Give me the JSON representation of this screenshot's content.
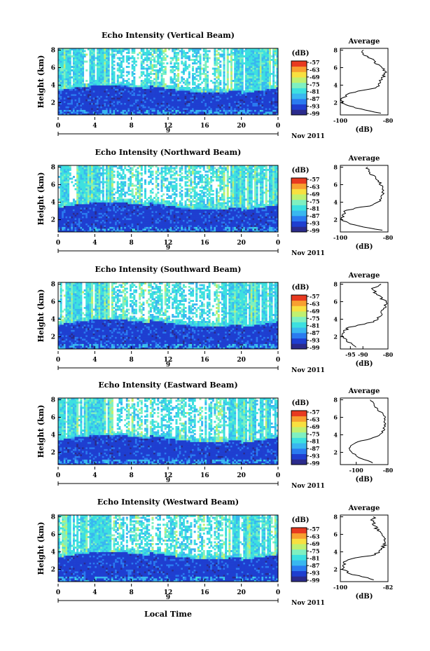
{
  "figure": {
    "xlabel": "Local Time",
    "date_label": "Nov 2011",
    "day_label": "9",
    "colorbar_unit": "(dB)",
    "colorbar_ticks": [
      "-57",
      "-63",
      "-69",
      "-75",
      "-81",
      "-87",
      "-93",
      "-99"
    ],
    "colors": {
      "scale": [
        "#2b2b8c",
        "#1f3fd0",
        "#2a7bf0",
        "#39b7f0",
        "#3de0e0",
        "#7ff0c0",
        "#c0f070",
        "#f8e040",
        "#f8a030",
        "#e83a20"
      ],
      "missing": "#ffffff"
    }
  },
  "chart_data": [
    {
      "type": "heatmap",
      "title": "Echo Intensity (Vertical Beam)",
      "ylabel": "Height (km)",
      "x_ticks": [
        "0",
        "4",
        "8",
        "12",
        "16",
        "20",
        "0"
      ],
      "y_ticks": [
        "2",
        "4",
        "6",
        "8"
      ],
      "xlim": [
        0,
        24
      ],
      "ylim": [
        0.6,
        8.2
      ],
      "color_range_db": [
        -99,
        -57
      ],
      "profile": {
        "title": "Average",
        "xlabel": "(dB)",
        "x_ticks": [
          "-100",
          "-80"
        ],
        "y_ticks": [
          "2",
          "4",
          "6",
          "8"
        ],
        "xlim": [
          -100,
          -80
        ],
        "ylim": [
          0.6,
          8.2
        ],
        "height_km": [
          0.8,
          1.5,
          2.0,
          2.5,
          3.0,
          3.3,
          3.6,
          4.0,
          4.5,
          5.0,
          5.5,
          6.0,
          6.5,
          7.0,
          7.5,
          8.0
        ],
        "db": [
          -83,
          -95,
          -99,
          -99,
          -97,
          -93,
          -86,
          -84,
          -83,
          -82,
          -81,
          -82,
          -85,
          -87,
          -90,
          -91
        ]
      }
    },
    {
      "type": "heatmap",
      "title": "Echo Intensity (Northward Beam)",
      "ylabel": "Height (km)",
      "x_ticks": [
        "0",
        "4",
        "8",
        "12",
        "16",
        "20",
        "0"
      ],
      "y_ticks": [
        "2",
        "4",
        "6",
        "8"
      ],
      "xlim": [
        0,
        24
      ],
      "ylim": [
        0.6,
        8.2
      ],
      "color_range_db": [
        -99,
        -57
      ],
      "profile": {
        "title": "Average",
        "xlabel": "(dB)",
        "x_ticks": [
          "-100",
          "-80"
        ],
        "y_ticks": [
          "2",
          "4",
          "6",
          "8"
        ],
        "xlim": [
          -100,
          -80
        ],
        "ylim": [
          0.6,
          8.2
        ],
        "height_km": [
          0.8,
          1.5,
          2.0,
          2.5,
          3.0,
          3.3,
          3.6,
          4.0,
          4.5,
          5.0,
          5.5,
          6.0,
          6.5,
          7.0,
          7.5,
          8.0
        ],
        "db": [
          -83,
          -96,
          -99,
          -99,
          -98,
          -94,
          -87,
          -84,
          -83,
          -82,
          -82,
          -83,
          -84,
          -86,
          -88,
          -89
        ]
      }
    },
    {
      "type": "heatmap",
      "title": "Echo Intensity (Southward Beam)",
      "ylabel": "Height (km)",
      "x_ticks": [
        "0",
        "4",
        "8",
        "12",
        "16",
        "20",
        "0"
      ],
      "y_ticks": [
        "2",
        "4",
        "6",
        "8"
      ],
      "xlim": [
        0,
        24
      ],
      "ylim": [
        0.6,
        8.2
      ],
      "color_range_db": [
        -99,
        -57
      ],
      "profile": {
        "title": "Average",
        "xlabel": "(dB)",
        "x_ticks": [
          "-95",
          "-90",
          "-80"
        ],
        "y_ticks": [
          "2",
          "4",
          "6",
          "8"
        ],
        "xlim": [
          -99,
          -80
        ],
        "ylim": [
          0.6,
          8.2
        ],
        "height_km": [
          0.8,
          1.5,
          2.0,
          2.5,
          3.0,
          3.3,
          3.6,
          4.0,
          4.5,
          5.0,
          5.5,
          6.0,
          6.5,
          7.0,
          7.5,
          8.0
        ],
        "db": [
          -92,
          -96,
          -98,
          -98,
          -96,
          -92,
          -87,
          -84,
          -83,
          -82,
          -81,
          -81,
          -83,
          -85,
          -86,
          -82
        ]
      }
    },
    {
      "type": "heatmap",
      "title": "Echo Intensity (Eastward Beam)",
      "ylabel": "Height (km)",
      "x_ticks": [
        "0",
        "4",
        "8",
        "12",
        "16",
        "20",
        "0"
      ],
      "y_ticks": [
        "2",
        "4",
        "6",
        "8"
      ],
      "xlim": [
        0,
        24
      ],
      "ylim": [
        0.6,
        8.2
      ],
      "color_range_db": [
        -99,
        -57
      ],
      "profile": {
        "title": "Average",
        "xlabel": "(dB)",
        "x_ticks": [
          "-100",
          "-80"
        ],
        "y_ticks": [
          "2",
          "4",
          "6",
          "8"
        ],
        "xlim": [
          -110,
          -80
        ],
        "ylim": [
          0.6,
          8.2
        ],
        "height_km": [
          0.8,
          1.5,
          2.0,
          2.5,
          3.0,
          3.3,
          3.6,
          4.0,
          4.5,
          5.0,
          5.5,
          6.0,
          6.5,
          7.0,
          7.5,
          8.0
        ],
        "db": [
          -90,
          -99,
          -103,
          -104,
          -102,
          -97,
          -90,
          -85,
          -83,
          -82,
          -82,
          -82,
          -84,
          -87,
          -89,
          -91
        ]
      }
    },
    {
      "type": "heatmap",
      "title": "Echo Intensity (Westward Beam)",
      "ylabel": "Height (km)",
      "x_ticks": [
        "0",
        "4",
        "8",
        "12",
        "16",
        "20",
        "0"
      ],
      "y_ticks": [
        "2",
        "4",
        "6",
        "8"
      ],
      "xlim": [
        0,
        24
      ],
      "ylim": [
        0.6,
        8.2
      ],
      "color_range_db": [
        -99,
        -57
      ],
      "profile": {
        "title": "Average",
        "xlabel": "(dB)",
        "x_ticks": [
          "-100",
          "-82"
        ],
        "y_ticks": [
          "2",
          "4",
          "6",
          "8"
        ],
        "xlim": [
          -100,
          -82
        ],
        "ylim": [
          0.6,
          8.2
        ],
        "height_km": [
          0.8,
          1.5,
          2.0,
          2.5,
          3.0,
          3.3,
          3.6,
          4.0,
          4.5,
          5.0,
          5.5,
          6.0,
          6.5,
          7.0,
          7.5,
          8.0
        ],
        "db": [
          -87,
          -96,
          -99,
          -99,
          -98,
          -94,
          -88,
          -85,
          -84,
          -83,
          -83,
          -84,
          -86,
          -87,
          -88,
          -87
        ]
      }
    }
  ]
}
